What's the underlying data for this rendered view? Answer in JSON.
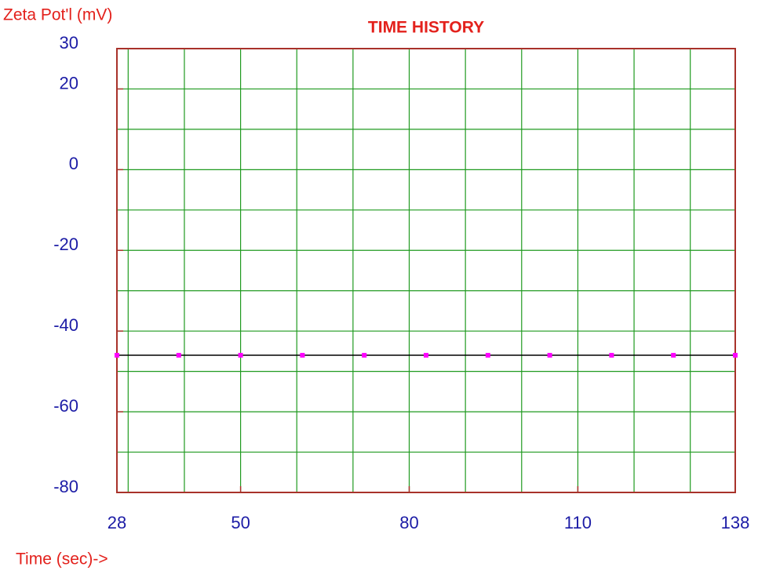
{
  "chart_data": {
    "type": "line",
    "title": "TIME HISTORY",
    "y_label": "Zeta Pot'l (mV)",
    "x_label": "Time (sec)->",
    "x": [
      28,
      39,
      50,
      61,
      72,
      83,
      94,
      105,
      116,
      127,
      138
    ],
    "series": [
      {
        "color": "#000000",
        "marker_color": "#ff00ff",
        "values": [
          -46,
          -46,
          -46,
          -46,
          -46,
          -46,
          -46,
          -46,
          -46,
          -46,
          -46
        ]
      }
    ],
    "xlim": [
      28,
      138
    ],
    "ylim": [
      -80,
      30
    ],
    "xticks": [
      28,
      50,
      80,
      110,
      138
    ],
    "yticks": [
      30,
      20,
      0,
      -20,
      -40,
      -60,
      -80
    ],
    "xgrid": [
      30,
      40,
      50,
      60,
      70,
      80,
      90,
      100,
      110,
      120,
      130
    ],
    "ygrid": [
      20,
      10,
      0,
      -10,
      -20,
      -30,
      -40,
      -50,
      -60,
      -70
    ],
    "grid_color": "#1f9a1f",
    "frame_color": "#a8322a"
  }
}
